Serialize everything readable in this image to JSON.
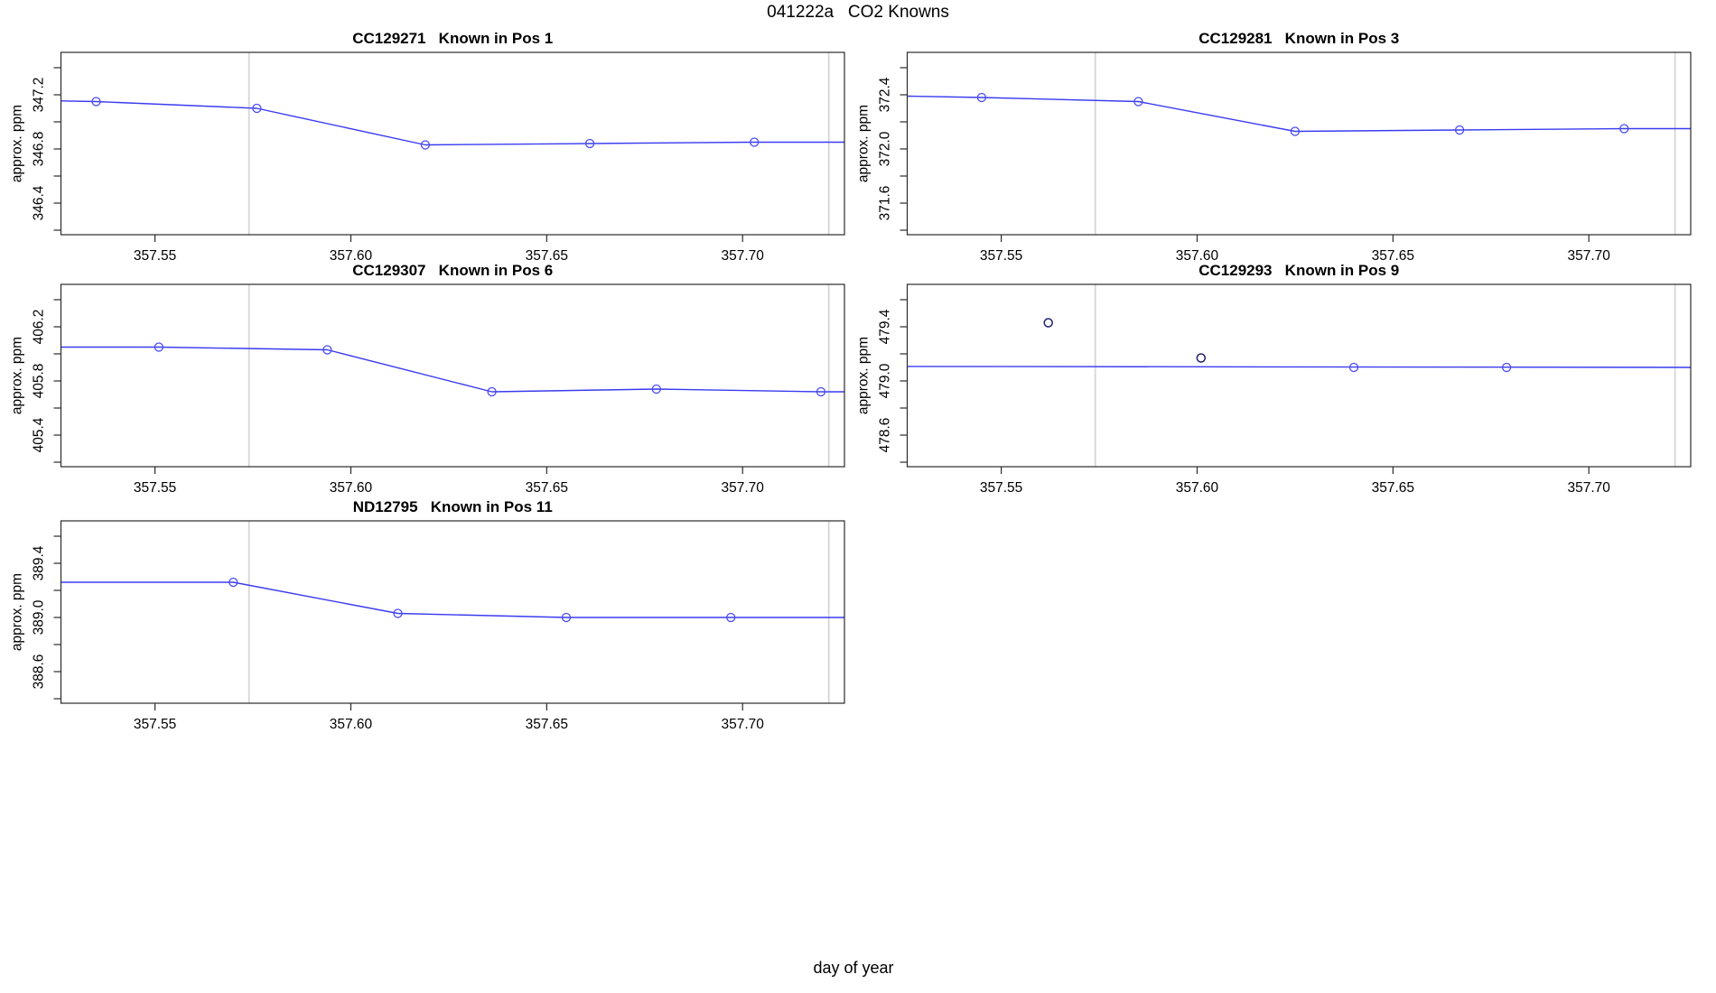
{
  "title": "041222a   CO2 Knowns",
  "xlabel": "day of year",
  "colors": {
    "line": "#3b3bf0",
    "point": "#4a4af0",
    "outlier_point": "#20206e",
    "vline": "#d6d6d6",
    "box": "#2a2a2a",
    "text": "#000000",
    "background": "#ffffff"
  },
  "axes": {
    "xlim": [
      357.526,
      357.726
    ],
    "x_ticks": [
      357.55,
      357.6,
      357.65,
      357.7
    ],
    "x_tick_labels": [
      "357.55",
      "357.60",
      "357.65",
      "357.70"
    ],
    "y_minor_step": 0.2
  },
  "chart_data": [
    {
      "type": "line",
      "id": "CC129271",
      "title": "CC129271   Known in Pos 1",
      "col": 0,
      "row": 0,
      "ylabel": "approx. ppm",
      "y_tick_labels": [
        "347.2",
        "346.8",
        "346.4"
      ],
      "y_tick_values": [
        347.2,
        346.8,
        346.4
      ],
      "vlines": [
        357.574,
        357.722
      ],
      "line": [
        [
          357.526,
          347.155
        ],
        [
          357.535,
          347.15
        ],
        [
          357.576,
          347.1
        ],
        [
          357.619,
          346.83
        ],
        [
          357.661,
          346.84
        ],
        [
          357.703,
          346.85
        ],
        [
          357.726,
          346.85
        ]
      ],
      "points": [
        [
          357.535,
          347.15
        ],
        [
          357.576,
          347.1
        ],
        [
          357.619,
          346.83
        ],
        [
          357.661,
          346.84
        ],
        [
          357.703,
          346.85
        ]
      ]
    },
    {
      "type": "line",
      "id": "CC129281",
      "title": "CC129281   Known in Pos 3",
      "col": 1,
      "row": 0,
      "ylabel": "approx. ppm",
      "y_tick_labels": [
        "372.4",
        "372.0",
        "371.6"
      ],
      "y_tick_values": [
        372.4,
        372.0,
        371.6
      ],
      "vlines": [
        357.574,
        357.722
      ],
      "line": [
        [
          357.526,
          372.39
        ],
        [
          357.545,
          372.38
        ],
        [
          357.585,
          372.35
        ],
        [
          357.625,
          372.13
        ],
        [
          357.667,
          372.14
        ],
        [
          357.709,
          372.15
        ],
        [
          357.726,
          372.15
        ]
      ],
      "points": [
        [
          357.545,
          372.38
        ],
        [
          357.585,
          372.35
        ],
        [
          357.625,
          372.13
        ],
        [
          357.667,
          372.14
        ],
        [
          357.709,
          372.15
        ]
      ]
    },
    {
      "type": "line",
      "id": "CC129307",
      "title": "CC129307   Known in Pos 6",
      "col": 0,
      "row": 1,
      "ylabel": "approx. ppm",
      "y_tick_labels": [
        "406.2",
        "405.8",
        "405.4"
      ],
      "y_tick_values": [
        406.2,
        405.8,
        405.4
      ],
      "vlines": [
        357.574,
        357.722
      ],
      "line": [
        [
          357.526,
          406.05
        ],
        [
          357.551,
          406.05
        ],
        [
          357.594,
          406.03
        ],
        [
          357.636,
          405.72
        ],
        [
          357.678,
          405.74
        ],
        [
          357.72,
          405.72
        ],
        [
          357.726,
          405.72
        ]
      ],
      "points": [
        [
          357.551,
          406.05
        ],
        [
          357.594,
          406.03
        ],
        [
          357.636,
          405.72
        ],
        [
          357.678,
          405.74
        ],
        [
          357.72,
          405.72
        ]
      ]
    },
    {
      "type": "line",
      "id": "CC129293",
      "title": "CC129293   Known in Pos 9",
      "col": 1,
      "row": 1,
      "ylabel": "approx. ppm",
      "y_tick_labels": [
        "479.4",
        "479.0",
        "478.6"
      ],
      "y_tick_values": [
        479.4,
        479.0,
        478.6
      ],
      "vlines": [
        357.574,
        357.722
      ],
      "line": [
        [
          357.526,
          479.107
        ],
        [
          357.726,
          479.1
        ]
      ],
      "points": [
        [
          357.562,
          479.43,
          "outlier"
        ],
        [
          357.601,
          479.17,
          "outlier"
        ],
        [
          357.64,
          479.1
        ],
        [
          357.679,
          479.1
        ]
      ]
    },
    {
      "type": "line",
      "id": "ND12795",
      "title": "ND12795   Known in Pos 11",
      "col": 0,
      "row": 2,
      "ylabel": "approx. ppm",
      "y_tick_labels": [
        "389.4",
        "389.0",
        "388.6"
      ],
      "y_tick_values": [
        389.4,
        389.0,
        388.6
      ],
      "vlines": [
        357.574,
        357.722
      ],
      "line": [
        [
          357.526,
          389.26
        ],
        [
          357.57,
          389.26
        ],
        [
          357.612,
          389.03
        ],
        [
          357.655,
          389.0
        ],
        [
          357.697,
          389.0
        ],
        [
          357.726,
          389.0
        ]
      ],
      "points": [
        [
          357.57,
          389.26
        ],
        [
          357.612,
          389.03
        ],
        [
          357.655,
          389.0
        ],
        [
          357.697,
          389.0
        ]
      ]
    }
  ]
}
